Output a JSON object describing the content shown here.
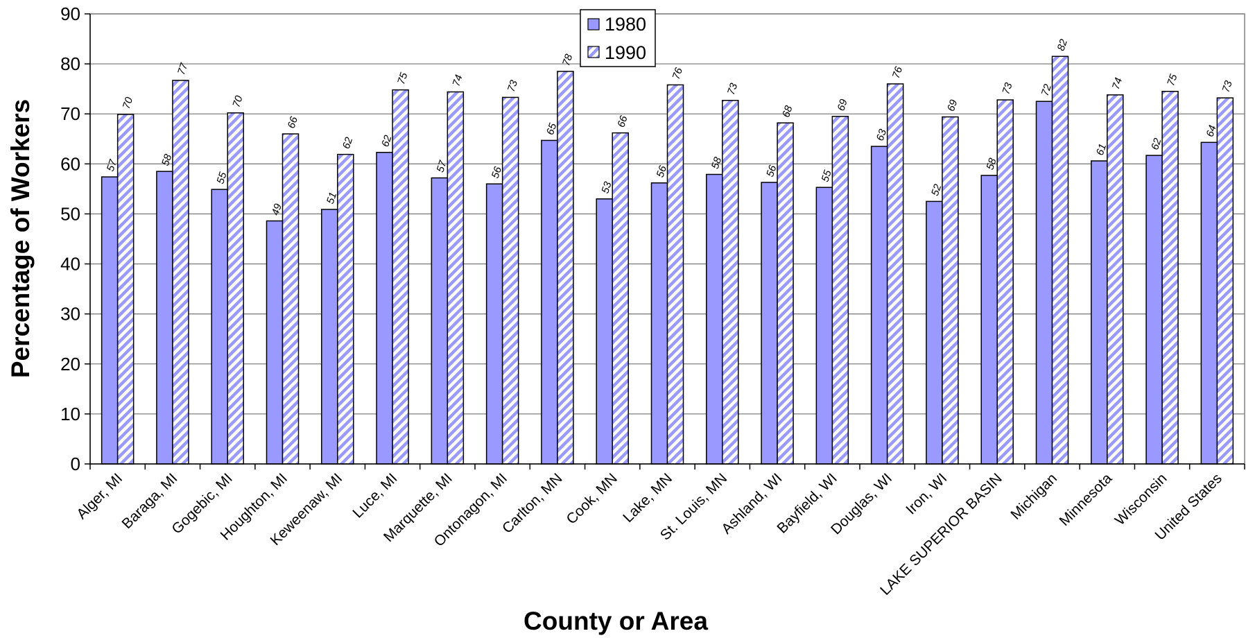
{
  "chart_data": {
    "type": "bar",
    "title": "",
    "xlabel": "County or Area",
    "ylabel": "Percentage of Workers",
    "ylim": [
      0,
      90
    ],
    "yticks": [
      0,
      10,
      20,
      30,
      40,
      50,
      60,
      70,
      80,
      90
    ],
    "grid": true,
    "legend_position": "top-center",
    "categories": [
      "Alger, MI",
      "Baraga, MI",
      "Gogebic, MI",
      "Houghton, MI",
      "Keweenaw, MI",
      "Luce, MI",
      "Marquette, MI",
      "Ontonagon, MI",
      "Carlton, MN",
      "Cook, MN",
      "Lake, MN",
      "St. Louis, MN",
      "Ashland, WI",
      "Bayfield, WI",
      "Douglas, WI",
      "Iron, WI",
      "LAKE SUPERIOR BASIN",
      "Michigan",
      "Minnesota",
      "Wisconsin",
      "United States"
    ],
    "series": [
      {
        "name": "1980",
        "fill": "#9999ff",
        "pattern": "solid",
        "values": [
          57.4,
          58.5,
          54.9,
          48.6,
          50.9,
          62.3,
          57.2,
          56.0,
          64.7,
          53.0,
          56.2,
          57.9,
          56.3,
          55.3,
          63.5,
          52.5,
          57.7,
          72.5,
          60.6,
          61.7,
          64.3
        ],
        "labels": [
          "57",
          "58",
          "55",
          "49",
          "51",
          "62",
          "57",
          "56",
          "65",
          "53",
          "56",
          "58",
          "56",
          "55",
          "63",
          "52",
          "58",
          "72",
          "61",
          "62",
          "64"
        ]
      },
      {
        "name": "1990",
        "fill": "#9999ff",
        "pattern": "diagonal-stripes",
        "values": [
          69.9,
          76.7,
          70.2,
          66.0,
          61.9,
          74.8,
          74.4,
          73.3,
          78.5,
          66.2,
          75.8,
          72.7,
          68.2,
          69.5,
          76.0,
          69.4,
          72.8,
          81.5,
          73.8,
          74.5,
          73.2
        ],
        "labels": [
          "70",
          "77",
          "70",
          "66",
          "62",
          "75",
          "74",
          "73",
          "78",
          "66",
          "76",
          "73",
          "68",
          "69",
          "76",
          "69",
          "73",
          "82",
          "74",
          "75",
          "73"
        ]
      }
    ],
    "highlight": {
      "category": "LAKE SUPERIOR BASIN",
      "label_color": "#ff0000"
    }
  }
}
